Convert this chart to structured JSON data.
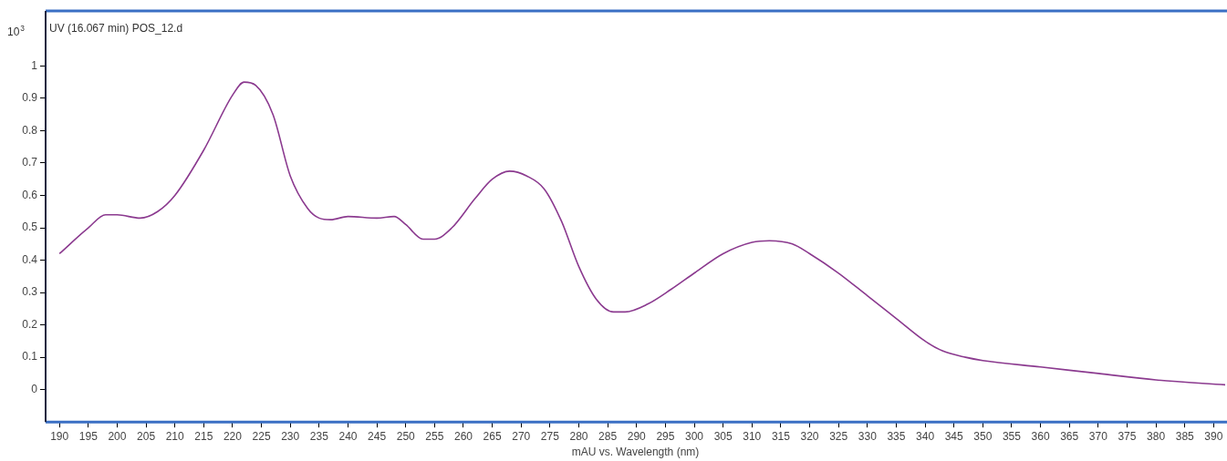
{
  "chart_data": {
    "type": "line",
    "title": "UV (16.067 min) POS_12.d",
    "xlabel": "mAU vs. Wavelength (nm)",
    "ylabel": "10$^{3}$",
    "xlim": [
      187.6,
      392
    ],
    "xticks": [
      190,
      195,
      200,
      205,
      210,
      215,
      220,
      225,
      230,
      235,
      240,
      245,
      250,
      255,
      260,
      265,
      270,
      275,
      280,
      285,
      290,
      295,
      300,
      305,
      310,
      315,
      320,
      325,
      330,
      335,
      340,
      345,
      350,
      355,
      360,
      365,
      370,
      375,
      380,
      385,
      390
    ],
    "ylim": [
      -0.1,
      1.17
    ],
    "yticks": [
      0,
      0.1,
      0.2,
      0.3,
      0.4,
      0.5,
      0.6,
      0.7,
      0.8,
      0.9,
      1
    ],
    "marker": "none",
    "line_style": "solid",
    "series": [
      {
        "color": "#8b3a8f",
        "x": [
          190,
          195,
          198,
          200,
          204,
          207,
          210,
          215,
          220,
          222,
          224,
          227,
          230,
          233,
          235,
          237,
          240,
          245,
          248,
          250,
          253,
          255,
          258,
          262,
          265,
          268,
          271,
          274,
          277,
          280,
          283,
          286,
          288,
          292,
          296,
          300,
          305,
          310,
          313,
          317,
          320,
          325,
          330,
          335,
          340,
          343,
          347,
          350,
          360,
          370,
          380,
          392
        ],
        "values": [
          0.42,
          0.5,
          0.54,
          0.54,
          0.53,
          0.55,
          0.6,
          0.74,
          0.91,
          0.95,
          0.94,
          0.85,
          0.66,
          0.56,
          0.53,
          0.525,
          0.535,
          0.53,
          0.535,
          0.51,
          0.465,
          0.465,
          0.5,
          0.59,
          0.65,
          0.675,
          0.66,
          0.62,
          0.52,
          0.38,
          0.28,
          0.24,
          0.24,
          0.265,
          0.31,
          0.36,
          0.42,
          0.455,
          0.46,
          0.45,
          0.42,
          0.36,
          0.29,
          0.22,
          0.15,
          0.12,
          0.1,
          0.09,
          0.07,
          0.05,
          0.03,
          0.015
        ]
      }
    ]
  }
}
